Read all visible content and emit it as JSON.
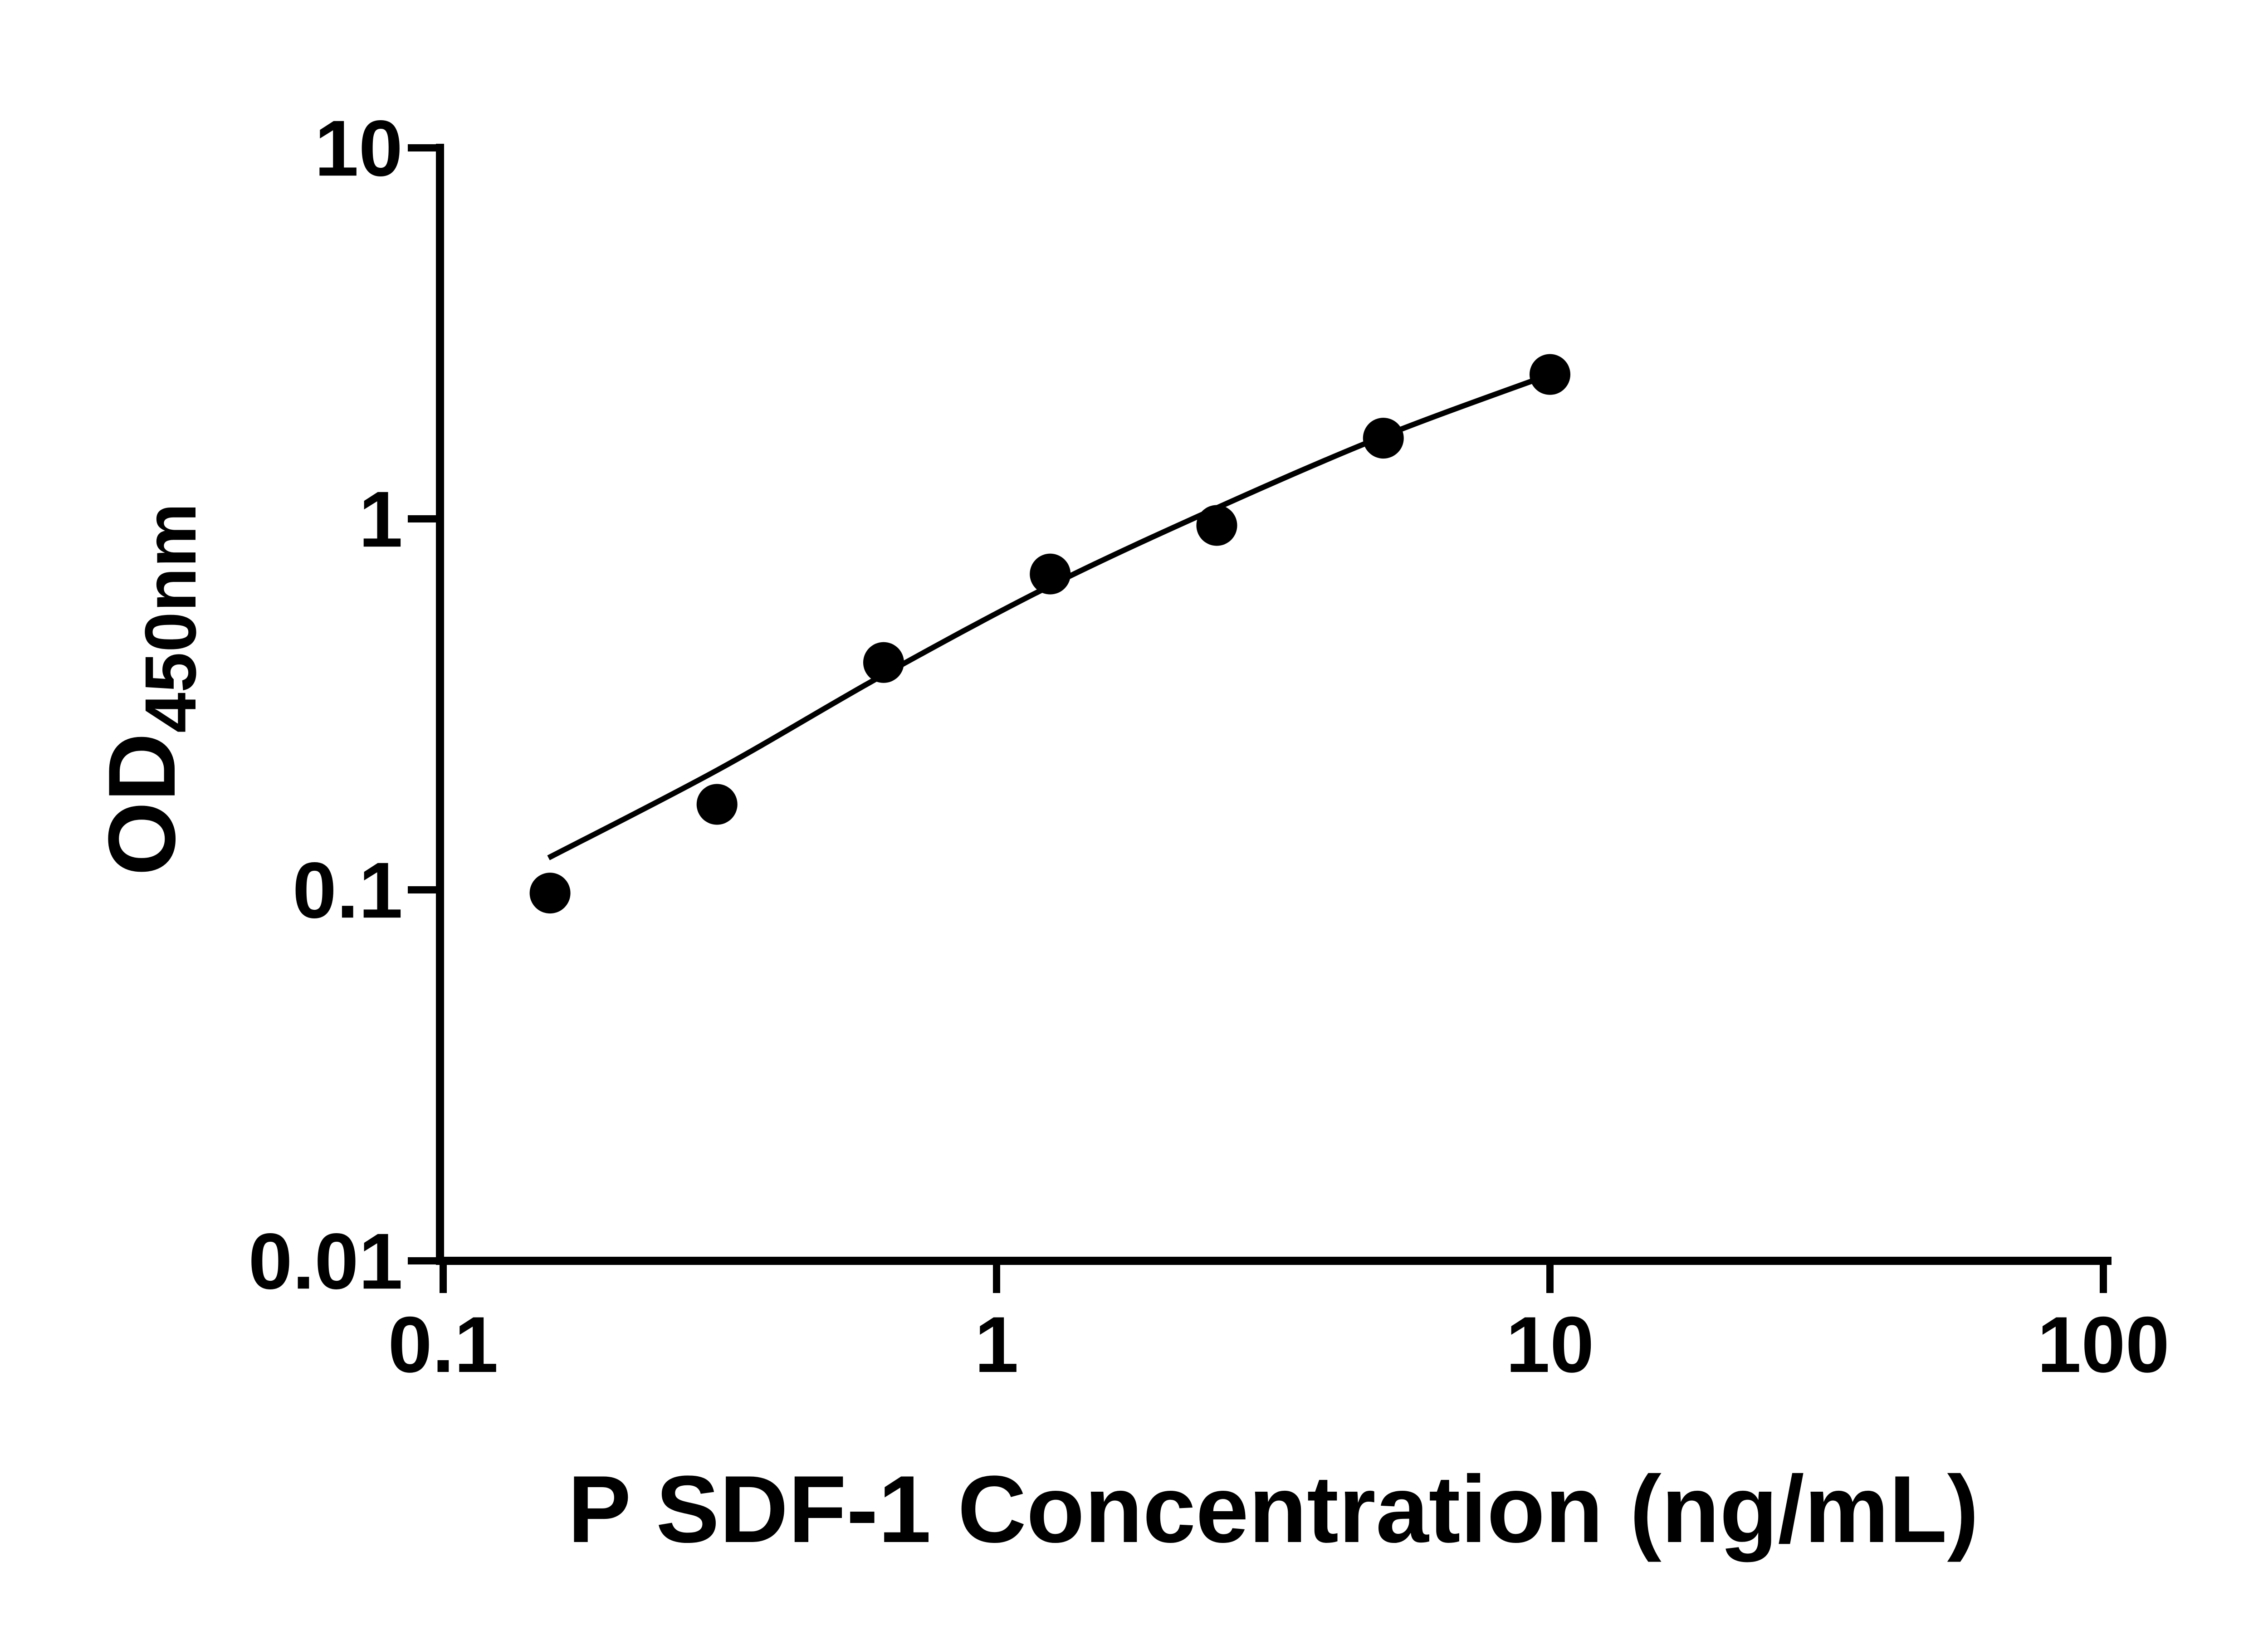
{
  "page": {
    "background": "#ffffff"
  },
  "chart_data": {
    "type": "scatter",
    "title": "",
    "xlabel": "P SDF-1 Concentration (ng/mL)",
    "ylabel_main": "OD",
    "ylabel_sub": "450nm",
    "x_scale": "log",
    "y_scale": "log",
    "xlim": [
      0.1,
      100
    ],
    "ylim": [
      0.01,
      10
    ],
    "x_ticks": [
      "0.1",
      "1",
      "10",
      "100"
    ],
    "y_ticks": [
      "0.01",
      "0.1",
      "1",
      "10"
    ],
    "grid": "off",
    "legend": "none",
    "points": {
      "x": [
        0.156,
        0.3125,
        0.625,
        1.25,
        2.5,
        5,
        10
      ],
      "y": [
        0.098,
        0.17,
        0.41,
        0.71,
        0.96,
        1.65,
        2.45
      ]
    },
    "fit_curve": {
      "x": [
        0.155,
        0.3125,
        0.625,
        1.25,
        2.5,
        5,
        10
      ],
      "y": [
        0.122,
        0.21,
        0.38,
        0.66,
        1.07,
        1.67,
        2.45
      ]
    },
    "marker_color": "#000000",
    "line_color": "#000000",
    "axis_color": "#000000",
    "background": "#ffffff"
  }
}
